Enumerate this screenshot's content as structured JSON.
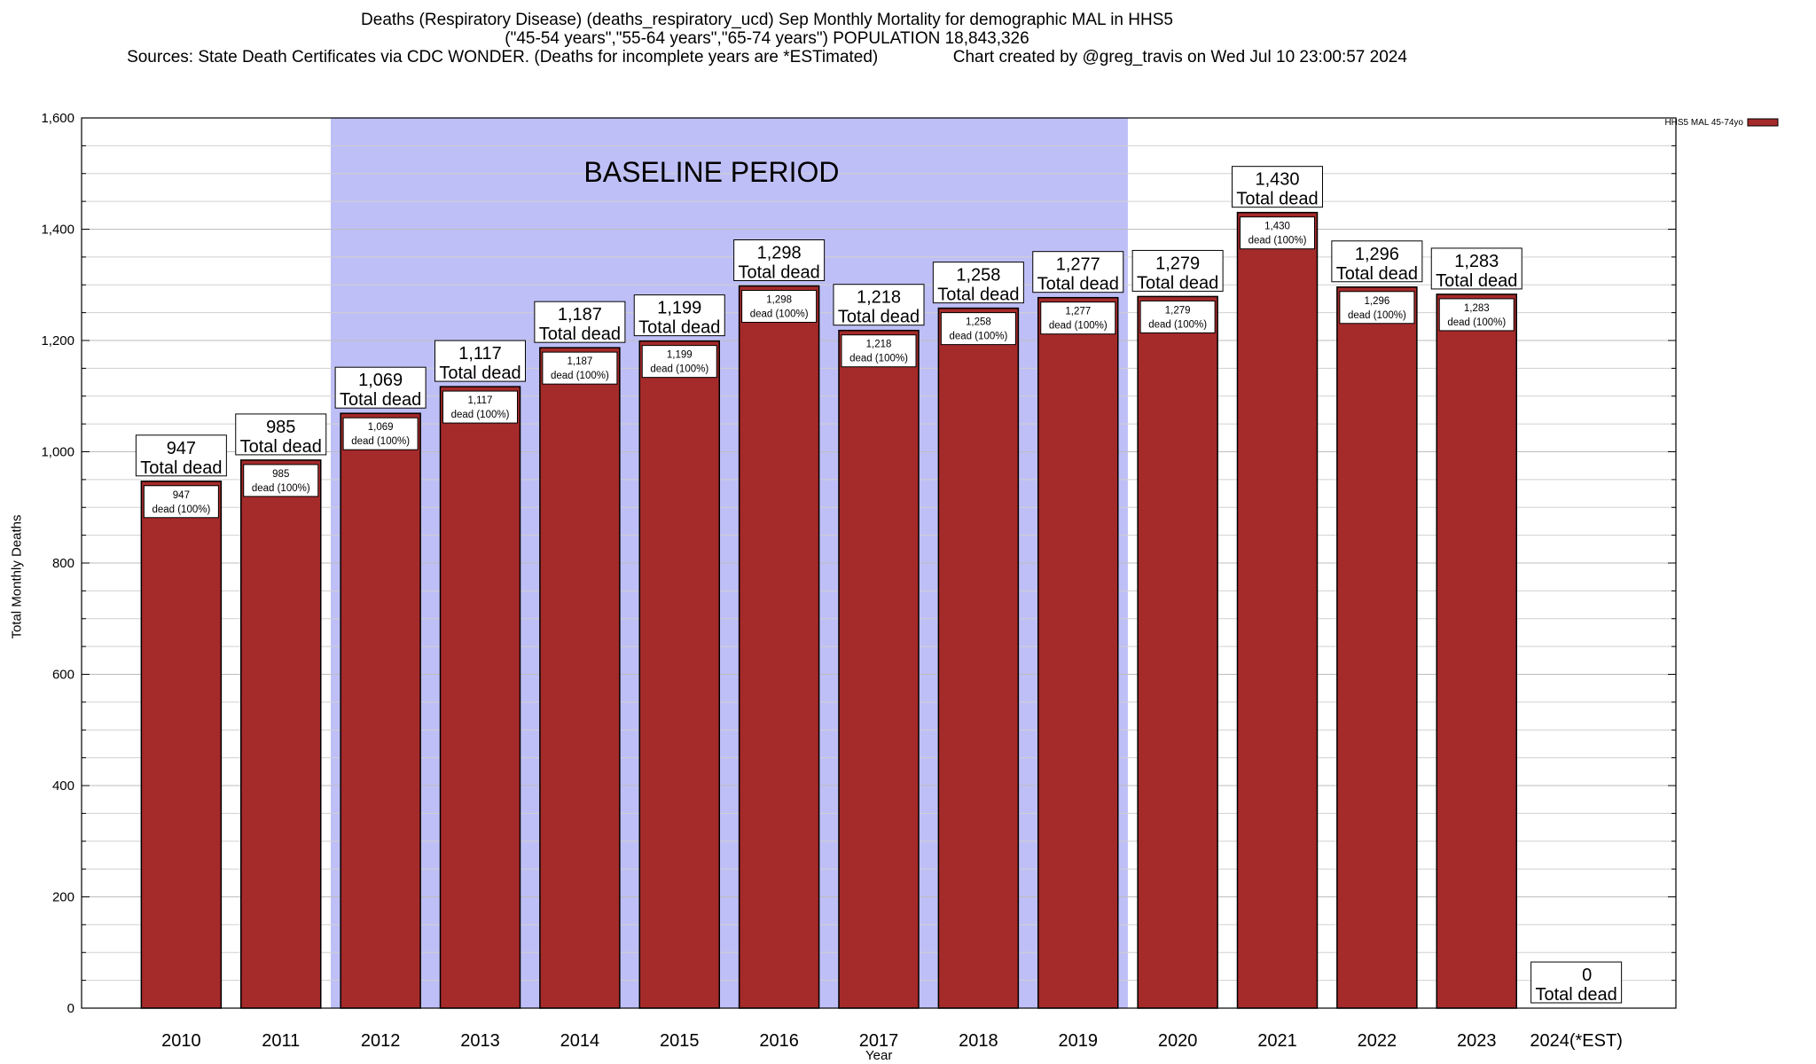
{
  "header": {
    "line1": "Deaths (Respiratory Disease) (deaths_respiratory_ucd) Sep Monthly Mortality for demographic MAL in HHS5",
    "line2": "(\"45-54 years\",\"55-64 years\",\"65-74 years\") POPULATION 18,843,326",
    "line3": "Sources: State Death Certificates via CDC WONDER. (Deaths for incomplete years are *ESTimated)                Chart created by @greg_travis on Wed Jul 10 23:00:57 2024"
  },
  "chart_data": {
    "type": "bar",
    "title": "Deaths (Respiratory Disease) (deaths_respiratory_ucd) Sep Monthly Mortality for demographic MAL in HHS5",
    "xlabel": "Year",
    "ylabel": "Total Monthly Deaths",
    "ylim": [
      0,
      1600
    ],
    "yticks": [
      0,
      200,
      400,
      600,
      800,
      1000,
      1200,
      1400,
      1600
    ],
    "ytick_labels": [
      "0",
      "200",
      "400",
      "600",
      "800",
      "1,000",
      "1,200",
      "1,400",
      "1,600"
    ],
    "grid": true,
    "legend_position": "top-right",
    "categories": [
      "2010",
      "2011",
      "2012",
      "2013",
      "2014",
      "2015",
      "2016",
      "2017",
      "2018",
      "2019",
      "2020",
      "2021",
      "2022",
      "2023",
      "2024(*EST)"
    ],
    "series": [
      {
        "name": "HHS5 MAL 45-74yo",
        "color": "#a52a2a",
        "values": [
          947,
          985,
          1069,
          1117,
          1187,
          1199,
          1298,
          1218,
          1258,
          1277,
          1279,
          1430,
          1296,
          1283,
          0
        ]
      }
    ],
    "top_labels": [
      "947",
      "985",
      "1,069",
      "1,117",
      "1,187",
      "1,199",
      "1,298",
      "1,218",
      "1,258",
      "1,277",
      "1,279",
      "1,430",
      "1,296",
      "1,283",
      "0"
    ],
    "top_label_suffix": "Total dead",
    "inner_labels": [
      "947",
      "985",
      "1,069",
      "1,117",
      "1,187",
      "1,199",
      "1,298",
      "1,218",
      "1,258",
      "1,277",
      "1,279",
      "1,430",
      "1,296",
      "1,283",
      ""
    ],
    "inner_label_suffix": "dead (100%)",
    "baseline_period": {
      "label": "BASELINE PERIOD",
      "start": "2012",
      "end": "2019",
      "color": "#bfbff7"
    }
  }
}
